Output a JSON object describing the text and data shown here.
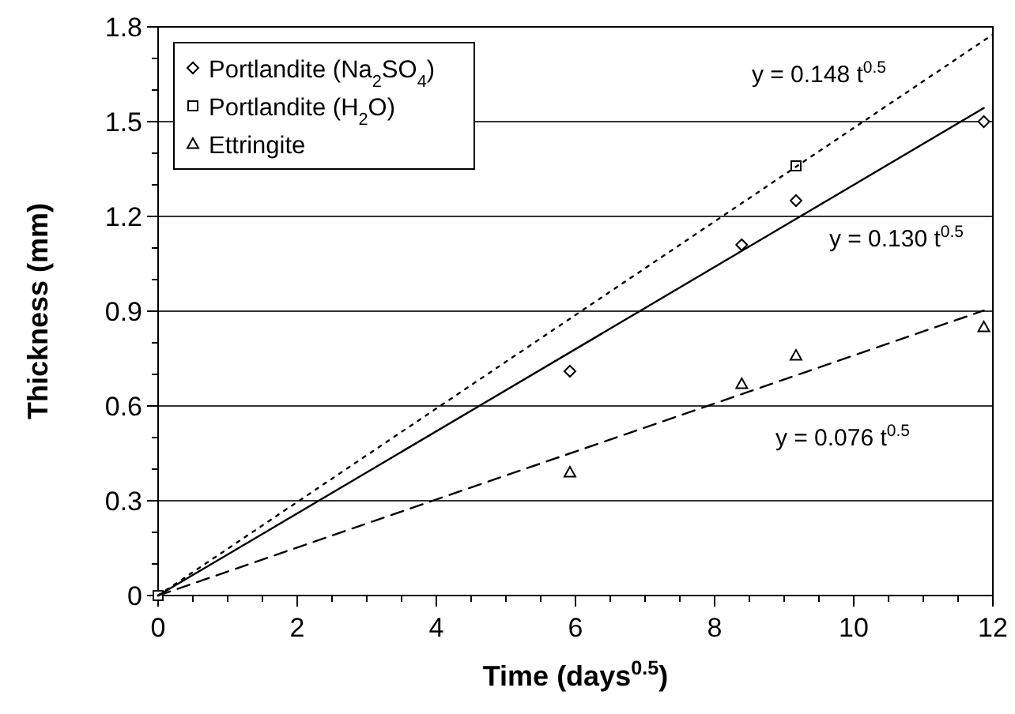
{
  "chart_data": {
    "type": "scatter",
    "xlabel": "Time (days$^{0.5}$)",
    "ylabel": "Thickness (mm)",
    "xlim": [
      0,
      12
    ],
    "ylim": [
      0,
      1.8
    ],
    "xticks": [
      0,
      {
        "value": 0.5,
        "label": null
      },
      {
        "value": 1,
        "label": null
      },
      {
        "value": 1.5,
        "label": null
      },
      2,
      {
        "value": 2.5,
        "label": null
      },
      {
        "value": 3,
        "label": null
      },
      {
        "value": 3.5,
        "label": null
      },
      4,
      {
        "value": 4.5,
        "label": null
      },
      {
        "value": 5,
        "label": null
      },
      {
        "value": 5.5,
        "label": null
      },
      6,
      {
        "value": 6.5,
        "label": null
      },
      {
        "value": 7,
        "label": null
      },
      {
        "value": 7.5,
        "label": null
      },
      8,
      {
        "value": 8.5,
        "label": null
      },
      {
        "value": 9,
        "label": null
      },
      {
        "value": 9.5,
        "label": null
      },
      10,
      {
        "value": 10.5,
        "label": null
      },
      {
        "value": 11,
        "label": null
      },
      {
        "value": 11.5,
        "label": null
      },
      12
    ],
    "yticks": [
      0,
      {
        "value": 0.1,
        "label": null
      },
      {
        "value": 0.2,
        "label": null
      },
      0.3,
      {
        "value": 0.4,
        "label": null
      },
      {
        "value": 0.5,
        "label": null
      },
      0.6,
      {
        "value": 0.7,
        "label": null
      },
      {
        "value": 0.8,
        "label": null
      },
      0.9,
      {
        "value": 1.0,
        "label": null
      },
      {
        "value": 1.1,
        "label": null
      },
      1.2,
      {
        "value": 1.3,
        "label": null
      },
      {
        "value": 1.4,
        "label": null
      },
      1.5,
      {
        "value": 1.6,
        "label": null
      },
      {
        "value": 1.7,
        "label": null
      },
      1.8
    ],
    "grid": "y",
    "legend": "top left",
    "series": [
      {
        "name": "Portlandite (Na$_{2}$SO$_{4}$)",
        "color": "#000000",
        "marker": "diamond",
        "x": [
          5.92,
          8.39,
          9.17,
          11.87
        ],
        "values": [
          0.71,
          1.11,
          1.25,
          1.5
        ]
      },
      {
        "name": "Portlandite (H$_{2}$O)",
        "color": "#000000",
        "marker": "square",
        "x": [
          0,
          9.17
        ],
        "values": [
          0,
          1.36
        ]
      },
      {
        "name": "Ettringite",
        "color": "#000000",
        "marker": "triangle",
        "x": [
          5.92,
          8.39,
          9.17,
          11.87
        ],
        "values": [
          0.39,
          0.67,
          0.76,
          0.85
        ]
      },
      {
        "type": "line",
        "color": "#000000",
        "line_style": "dotted",
        "marker": "none",
        "x": [
          0,
          12
        ],
        "values": [
          0,
          1.776
        ]
      },
      {
        "type": "line",
        "color": "#000000",
        "line_style": "solid",
        "marker": "none",
        "x": [
          0,
          11.87
        ],
        "values": [
          0,
          1.543
        ]
      },
      {
        "type": "line",
        "color": "#000000",
        "line_style": "dashed",
        "marker": "none",
        "x": [
          0,
          11.87
        ],
        "values": [
          0,
          0.902
        ]
      }
    ],
    "annotations": [
      "y = 0.148 t$^{0.5}$",
      "y = 0.130 t$^{0.5}$",
      "y = 0.076 t$^{0.5}$"
    ]
  }
}
